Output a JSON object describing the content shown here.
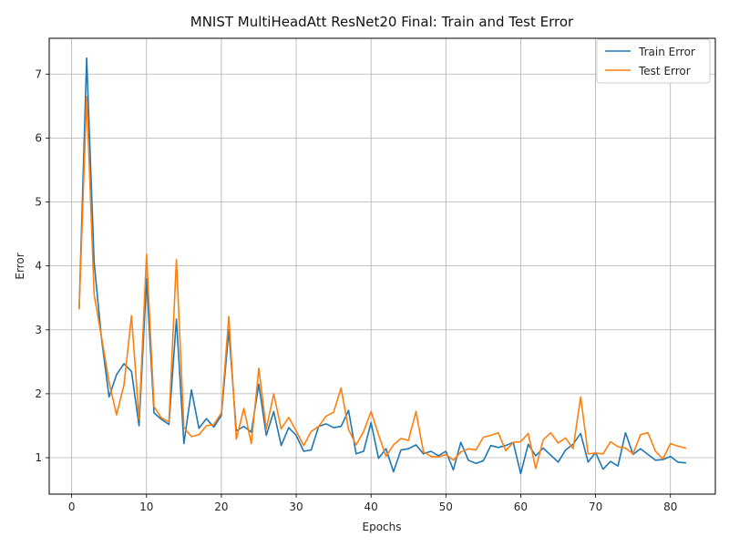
{
  "chart_data": {
    "type": "line",
    "title": "MNIST MultiHeadAtt ResNet20 Final: Train and Test Error",
    "xlabel": "Epochs",
    "ylabel": "Error",
    "xlim": [
      -3,
      86
    ],
    "ylim": [
      0.43,
      7.56
    ],
    "xticks": [
      0,
      10,
      20,
      30,
      40,
      50,
      60,
      70,
      80
    ],
    "yticks": [
      1,
      2,
      3,
      4,
      5,
      6,
      7
    ],
    "grid": true,
    "legend_position": "top-right",
    "x": [
      1,
      2,
      3,
      4,
      5,
      6,
      7,
      8,
      9,
      10,
      11,
      12,
      13,
      14,
      15,
      16,
      17,
      18,
      19,
      20,
      21,
      22,
      23,
      24,
      25,
      26,
      27,
      28,
      29,
      30,
      31,
      32,
      33,
      34,
      35,
      36,
      37,
      38,
      39,
      40,
      41,
      42,
      43,
      44,
      45,
      46,
      47,
      48,
      49,
      50,
      51,
      52,
      53,
      54,
      55,
      56,
      57,
      58,
      59,
      60,
      61,
      62,
      63,
      64,
      65,
      66,
      67,
      68,
      69,
      70,
      71,
      72,
      73,
      74,
      75,
      76,
      77,
      78,
      79,
      80,
      81,
      82
    ],
    "series": [
      {
        "name": "Train Error",
        "color": "#1f77b4",
        "values": [
          3.35,
          7.25,
          4.05,
          2.85,
          1.95,
          2.3,
          2.47,
          2.35,
          1.5,
          3.8,
          1.7,
          1.6,
          1.52,
          3.17,
          1.22,
          2.06,
          1.46,
          1.61,
          1.48,
          1.66,
          3.0,
          1.42,
          1.49,
          1.4,
          2.15,
          1.35,
          1.72,
          1.19,
          1.47,
          1.35,
          1.1,
          1.12,
          1.49,
          1.53,
          1.47,
          1.49,
          1.74,
          1.06,
          1.1,
          1.55,
          0.99,
          1.14,
          0.78,
          1.12,
          1.14,
          1.2,
          1.06,
          1.1,
          1.03,
          1.1,
          0.81,
          1.24,
          0.96,
          0.91,
          0.95,
          1.19,
          1.16,
          1.19,
          1.24,
          0.75,
          1.21,
          1.03,
          1.15,
          1.04,
          0.93,
          1.12,
          1.21,
          1.38,
          0.93,
          1.08,
          0.82,
          0.94,
          0.87,
          1.39,
          1.05,
          1.14,
          1.05,
          0.96,
          0.97,
          1.02,
          0.93,
          0.92
        ]
      },
      {
        "name": "Test Error",
        "color": "#ff7f0e",
        "values": [
          3.33,
          6.65,
          3.55,
          2.88,
          2.18,
          1.67,
          2.14,
          3.22,
          1.6,
          4.18,
          1.8,
          1.62,
          1.56,
          4.1,
          1.47,
          1.33,
          1.36,
          1.5,
          1.52,
          1.7,
          3.21,
          1.29,
          1.77,
          1.22,
          2.4,
          1.45,
          2.0,
          1.45,
          1.63,
          1.42,
          1.19,
          1.41,
          1.49,
          1.65,
          1.71,
          2.09,
          1.44,
          1.2,
          1.41,
          1.72,
          1.36,
          1.02,
          1.2,
          1.3,
          1.27,
          1.72,
          1.09,
          1.02,
          1.01,
          1.05,
          0.96,
          1.09,
          1.14,
          1.12,
          1.32,
          1.35,
          1.39,
          1.11,
          1.24,
          1.25,
          1.38,
          0.83,
          1.28,
          1.39,
          1.23,
          1.31,
          1.14,
          1.95,
          1.06,
          1.07,
          1.06,
          1.25,
          1.17,
          1.15,
          1.06,
          1.36,
          1.39,
          1.1,
          0.98,
          1.22,
          1.18,
          1.15
        ]
      }
    ]
  }
}
